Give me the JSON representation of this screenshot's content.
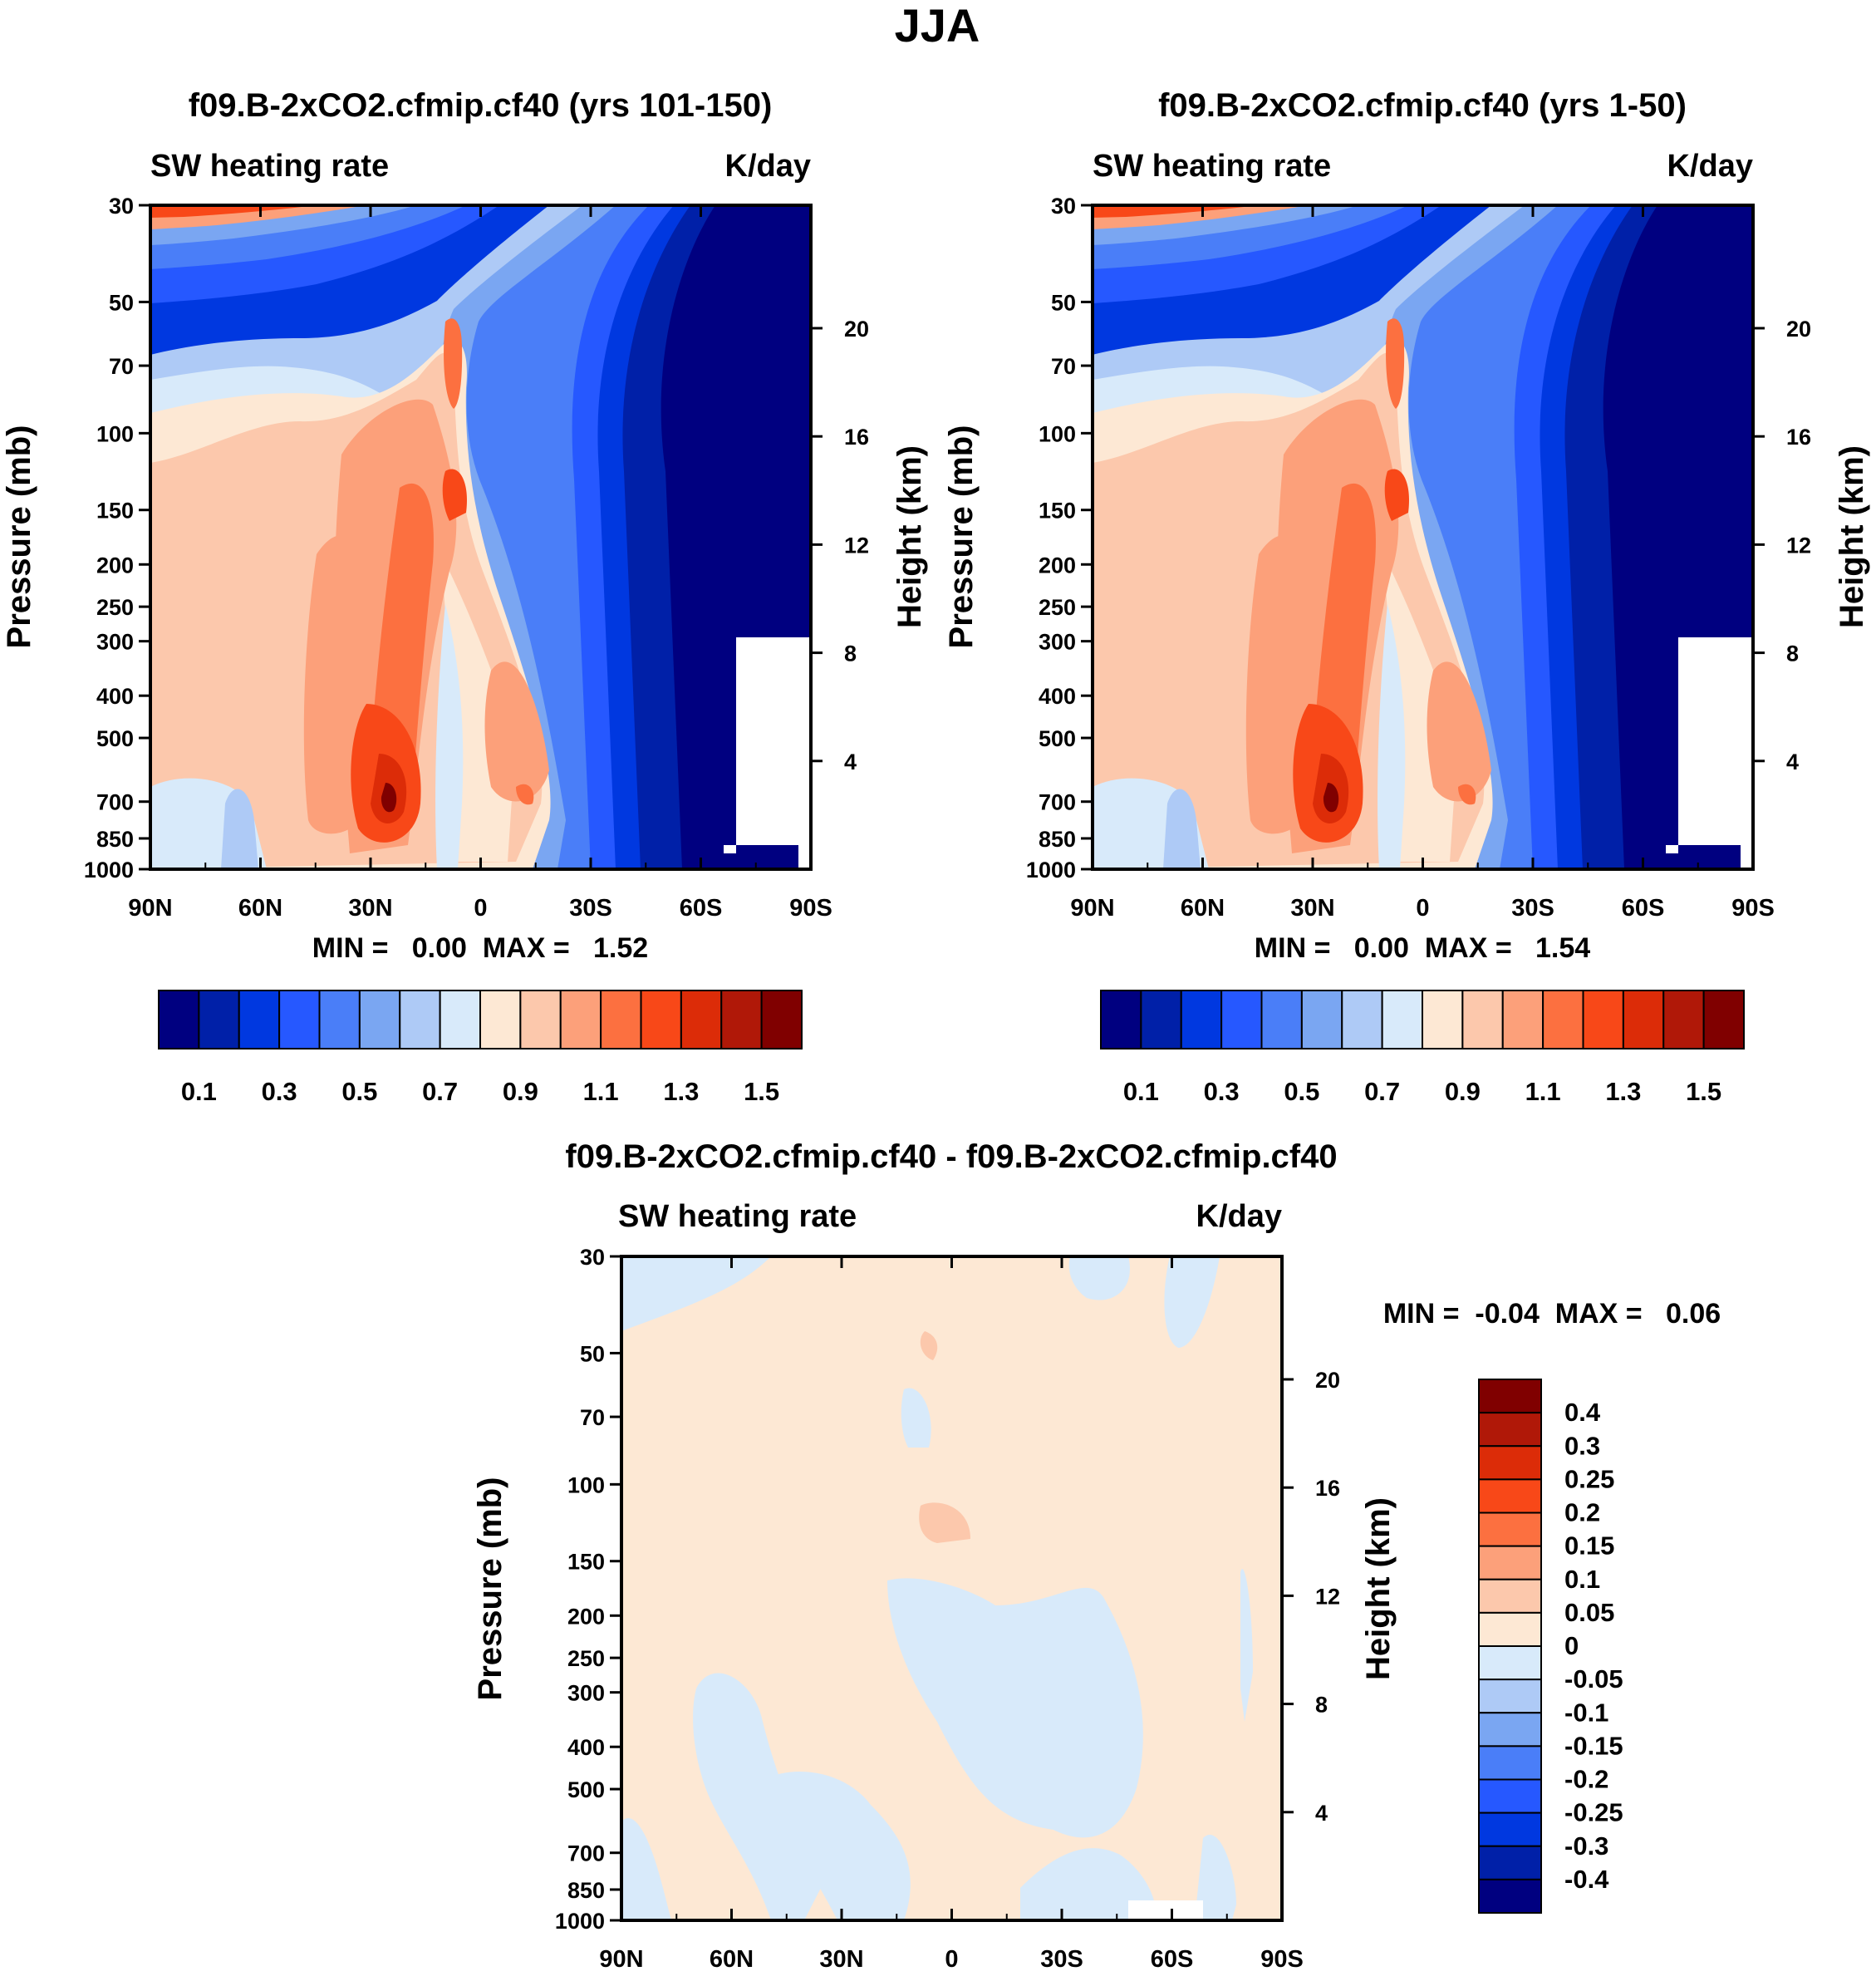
{
  "figure_title": "JJA",
  "colors": {
    "base_levels": [
      "#000080",
      "#0020a8",
      "#0038e0",
      "#2658ff",
      "#4a7ef8",
      "#7aa6f2",
      "#aecaf6",
      "#d8eafa",
      "#fde8d4",
      "#fcc8ac",
      "#fca07a",
      "#fc7040",
      "#f84818",
      "#dc2c08",
      "#b01808",
      "#800000"
    ],
    "diff_levels": [
      "#000080",
      "#0020a8",
      "#0038e0",
      "#2658ff",
      "#4a7ef8",
      "#7aa6f2",
      "#aecaf6",
      "#d8eafa",
      "#fde8d4",
      "#fcc8ac",
      "#fca07a",
      "#fc7040",
      "#f84818",
      "#dc2c08",
      "#b01808",
      "#800000"
    ]
  },
  "panels": {
    "a": {
      "title": "f09.B-2xCO2.cfmip.cf40 (yrs 101-150)",
      "left_label": "SW heating rate",
      "right_label": "K/day",
      "ylabel": "Pressure (mb)",
      "y2label": "Height (km)",
      "minmax": "MIN =   0.00  MAX =   1.52"
    },
    "b": {
      "title": "f09.B-2xCO2.cfmip.cf40 (yrs 1-50)",
      "left_label": "SW heating rate",
      "right_label": "K/day",
      "ylabel": "Pressure (mb)",
      "y2label": "Height (km)",
      "minmax": "MIN =   0.00  MAX =   1.54"
    },
    "c": {
      "title": "f09.B-2xCO2.cfmip.cf40 - f09.B-2xCO2.cfmip.cf40",
      "left_label": "SW heating rate",
      "right_label": "K/day",
      "ylabel": "Pressure (mb)",
      "y2label": "Height (km)",
      "minmax": "MIN =  -0.04  MAX =   0.06"
    }
  },
  "colorbar_base": {
    "labels": [
      "0.1",
      "0.3",
      "0.5",
      "0.7",
      "0.9",
      "1.1",
      "1.3",
      "1.5"
    ]
  },
  "colorbar_diff": {
    "labels": [
      "0.4",
      "0.3",
      "0.25",
      "0.2",
      "0.15",
      "0.1",
      "0.05",
      "0",
      "-0.05",
      "-0.1",
      "-0.15",
      "-0.2",
      "-0.25",
      "-0.3",
      "-0.4"
    ]
  },
  "chart_data": [
    {
      "type": "heatmap",
      "title": "f09.B-2xCO2.cfmip.cf40 (yrs 101-150)",
      "variable": "SW heating rate",
      "units": "K/day",
      "xlabel": "",
      "ylabel": "Pressure (mb)",
      "y2label": "Height (km)",
      "x_ticks": [
        "90N",
        "60N",
        "30N",
        "0",
        "30S",
        "60S",
        "90S"
      ],
      "x_range": [
        90,
        -90
      ],
      "y_ticks": [
        30,
        50,
        70,
        100,
        150,
        200,
        250,
        300,
        400,
        500,
        700,
        850,
        1000
      ],
      "y_range": [
        30,
        1000
      ],
      "y2_ticks": [
        20,
        16,
        12,
        8,
        4
      ],
      "contour_levels": [
        0.1,
        0.2,
        0.3,
        0.4,
        0.5,
        0.6,
        0.7,
        0.8,
        0.9,
        1.0,
        1.1,
        1.2,
        1.3,
        1.4,
        1.5
      ],
      "min": 0.0,
      "max": 1.52
    },
    {
      "type": "heatmap",
      "title": "f09.B-2xCO2.cfmip.cf40 (yrs 1-50)",
      "variable": "SW heating rate",
      "units": "K/day",
      "xlabel": "",
      "ylabel": "Pressure (mb)",
      "y2label": "Height (km)",
      "x_ticks": [
        "90N",
        "60N",
        "30N",
        "0",
        "30S",
        "60S",
        "90S"
      ],
      "x_range": [
        90,
        -90
      ],
      "y_ticks": [
        30,
        50,
        70,
        100,
        150,
        200,
        250,
        300,
        400,
        500,
        700,
        850,
        1000
      ],
      "y_range": [
        30,
        1000
      ],
      "y2_ticks": [
        20,
        16,
        12,
        8,
        4
      ],
      "contour_levels": [
        0.1,
        0.2,
        0.3,
        0.4,
        0.5,
        0.6,
        0.7,
        0.8,
        0.9,
        1.0,
        1.1,
        1.2,
        1.3,
        1.4,
        1.5
      ],
      "min": 0.0,
      "max": 1.54
    },
    {
      "type": "heatmap",
      "title": "f09.B-2xCO2.cfmip.cf40 - f09.B-2xCO2.cfmip.cf40",
      "variable": "SW heating rate",
      "units": "K/day",
      "xlabel": "",
      "ylabel": "Pressure (mb)",
      "y2label": "Height (km)",
      "x_ticks": [
        "90N",
        "60N",
        "30N",
        "0",
        "30S",
        "60S",
        "90S"
      ],
      "x_range": [
        90,
        -90
      ],
      "y_ticks": [
        30,
        50,
        70,
        100,
        150,
        200,
        250,
        300,
        400,
        500,
        700,
        850,
        1000
      ],
      "y_range": [
        30,
        1000
      ],
      "y2_ticks": [
        20,
        16,
        12,
        8,
        4
      ],
      "contour_levels": [
        -0.4,
        -0.3,
        -0.25,
        -0.2,
        -0.15,
        -0.1,
        -0.05,
        0,
        0.05,
        0.1,
        0.15,
        0.2,
        0.25,
        0.3,
        0.4
      ],
      "min": -0.04,
      "max": 0.06
    }
  ]
}
